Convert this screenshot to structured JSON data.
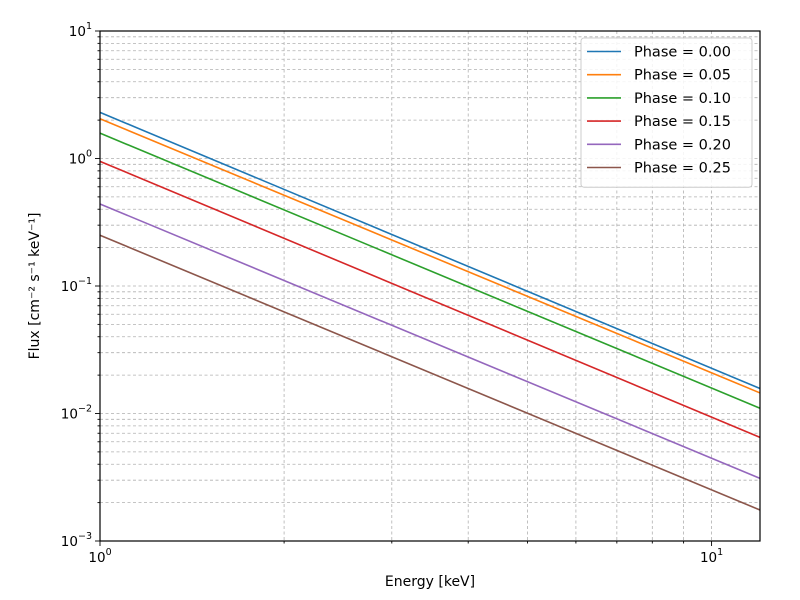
{
  "chart_data": {
    "type": "line",
    "title": "",
    "xlabel": "Energy [keV]",
    "ylabel": "Flux [cm⁻² s⁻¹ keV⁻¹]",
    "xscale": "log",
    "yscale": "log",
    "xlim": [
      1,
      12
    ],
    "ylim": [
      0.001,
      10
    ],
    "xticks": [
      {
        "base": "10",
        "exp": "0",
        "value": 1
      },
      {
        "base": "10",
        "exp": "1",
        "value": 10
      }
    ],
    "yticks": [
      {
        "base": "10",
        "exp": "−3",
        "value": 0.001
      },
      {
        "base": "10",
        "exp": "−2",
        "value": 0.01
      },
      {
        "base": "10",
        "exp": "−1",
        "value": 0.1
      },
      {
        "base": "10",
        "exp": "0",
        "value": 1
      },
      {
        "base": "10",
        "exp": "1",
        "value": 10
      }
    ],
    "grid": true,
    "legend_position": "top-right",
    "x": [
      1,
      12
    ],
    "series": [
      {
        "name": "Phase = 0.00",
        "color": "#1f77b4",
        "values": [
          2.3,
          0.0157
        ]
      },
      {
        "name": "Phase = 0.05",
        "color": "#ff7f0e",
        "values": [
          2.05,
          0.0145
        ]
      },
      {
        "name": "Phase = 0.10",
        "color": "#2ca02c",
        "values": [
          1.58,
          0.011
        ]
      },
      {
        "name": "Phase = 0.15",
        "color": "#d62728",
        "values": [
          0.95,
          0.0065
        ]
      },
      {
        "name": "Phase = 0.20",
        "color": "#9467bd",
        "values": [
          0.44,
          0.0031
        ]
      },
      {
        "name": "Phase = 0.25",
        "color": "#8c564b",
        "values": [
          0.25,
          0.00175
        ]
      }
    ]
  }
}
